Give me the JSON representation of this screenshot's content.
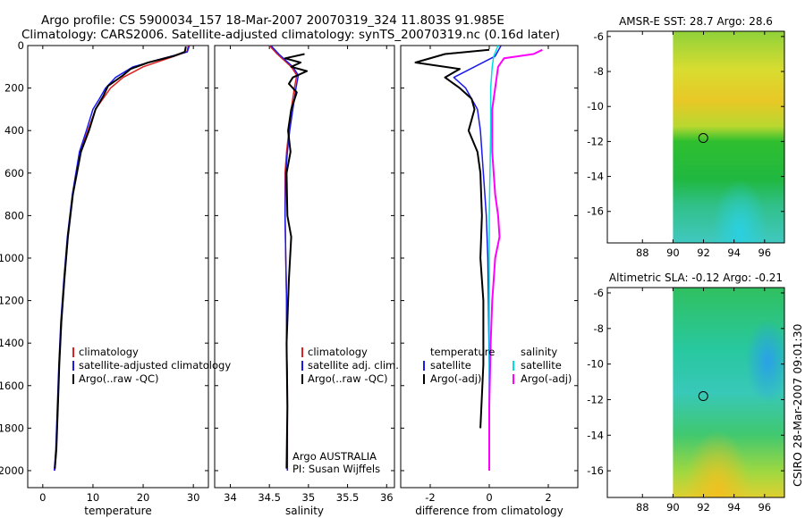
{
  "header": {
    "line1": "Argo profile: CS 5900034_157 18-Mar-2007 20070319_324 11.803S 91.985E",
    "line2": "Climatology: CARS2006. Satellite-adjusted climatology: synTS_20070319.nc (0.16d later)"
  },
  "side_text": "CSIRO 28-Mar-2007 09:01:30",
  "colors": {
    "climatology": "#e02020",
    "satellite": "#1a1aee",
    "argo": "#000000",
    "sat_diff": "#00e0e0",
    "argo_sal_diff": "#ff00ff"
  },
  "chart_data": [
    {
      "id": "temperature",
      "type": "line",
      "xlabel": "temperature",
      "ylabel": "",
      "xlim": [
        -3,
        33
      ],
      "ylim": [
        2080,
        0
      ],
      "xticks": [
        0,
        10,
        20,
        30
      ],
      "yticks": [
        0,
        200,
        400,
        600,
        800,
        1000,
        1200,
        1400,
        1600,
        1800,
        2000
      ],
      "legend": [
        "climatology",
        "satellite-adjusted climatology",
        "Argo(..raw -QC)"
      ],
      "series": [
        {
          "name": "climatology",
          "color": "#e02020",
          "width": 1.5,
          "x": [
            29,
            28.7,
            25,
            20,
            16,
            13.5,
            12,
            10.5,
            9,
            7.5,
            6,
            5,
            4.3,
            3.7,
            3.3,
            3,
            2.7,
            2.4
          ],
          "y": [
            0,
            30,
            60,
            100,
            150,
            200,
            250,
            300,
            400,
            500,
            700,
            900,
            1100,
            1300,
            1500,
            1700,
            1900,
            2000
          ]
        },
        {
          "name": "satellite-adjusted climatology",
          "color": "#1a1aee",
          "width": 1.5,
          "x": [
            29.2,
            28.8,
            24,
            18,
            14.5,
            12.5,
            11.3,
            10,
            8.7,
            7.3,
            5.9,
            4.9,
            4.2,
            3.6,
            3.2,
            2.9,
            2.6,
            2.3
          ],
          "y": [
            0,
            30,
            60,
            100,
            150,
            200,
            250,
            300,
            400,
            500,
            700,
            900,
            1100,
            1300,
            1500,
            1700,
            1900,
            2000
          ]
        },
        {
          "name": "Argo(..raw -QC)",
          "color": "#000000",
          "width": 2,
          "x": [
            28.5,
            28.3,
            26,
            21,
            17.5,
            16,
            13,
            12,
            10.5,
            9.2,
            7.6,
            6,
            5,
            4.3,
            3.7,
            3.3,
            3,
            2.7,
            2.4
          ],
          "y": [
            5,
            30,
            50,
            80,
            110,
            140,
            190,
            240,
            300,
            400,
            500,
            700,
            900,
            1100,
            1300,
            1500,
            1700,
            1900,
            1990
          ]
        }
      ]
    },
    {
      "id": "salinity",
      "type": "line",
      "xlabel": "salinity",
      "ylabel": "",
      "xlim": [
        33.8,
        36.1
      ],
      "ylim": [
        2080,
        0
      ],
      "xticks": [
        34,
        34.5,
        35,
        35.5,
        36
      ],
      "yticks": [],
      "legend": [
        "climatology",
        "satellite adj. clim.",
        "Argo(..raw -QC)"
      ],
      "annotations": [
        "Argo AUSTRALIA",
        "PI: Susan Wijffels"
      ],
      "series": [
        {
          "name": "climatology",
          "color": "#e02020",
          "width": 1.5,
          "x": [
            34.5,
            34.6,
            34.78,
            34.85,
            34.82,
            34.78,
            34.75,
            34.72,
            34.7,
            34.7,
            34.71,
            34.72,
            34.72,
            34.73,
            34.73,
            34.73
          ],
          "y": [
            0,
            40,
            100,
            140,
            200,
            300,
            400,
            500,
            600,
            800,
            1000,
            1200,
            1400,
            1600,
            1800,
            2000
          ]
        },
        {
          "name": "satellite adj. clim.",
          "color": "#1a1aee",
          "width": 1.5,
          "x": [
            34.52,
            34.62,
            34.8,
            34.87,
            34.84,
            34.8,
            34.76,
            34.73,
            34.71,
            34.7,
            34.71,
            34.72,
            34.72,
            34.73,
            34.73,
            34.73
          ],
          "y": [
            0,
            40,
            100,
            140,
            200,
            300,
            400,
            500,
            600,
            800,
            1000,
            1200,
            1400,
            1600,
            1800,
            2000
          ]
        },
        {
          "name": "Argo(..raw -QC)",
          "color": "#000000",
          "width": 2,
          "x": [
            34.95,
            34.7,
            34.9,
            34.78,
            34.98,
            34.8,
            34.75,
            34.85,
            34.78,
            34.74,
            34.77,
            34.72,
            34.73,
            34.78,
            34.75,
            34.72,
            34.73,
            34.72
          ],
          "y": [
            40,
            60,
            80,
            100,
            120,
            150,
            180,
            220,
            300,
            400,
            500,
            600,
            800,
            900,
            1100,
            1400,
            1700,
            1990
          ]
        }
      ]
    },
    {
      "id": "difference",
      "type": "line",
      "xlabel": "difference from climatology",
      "ylabel": "",
      "xlim": [
        -3,
        3
      ],
      "ylim": [
        2080,
        0
      ],
      "xticks": [
        -2,
        0,
        2
      ],
      "yticks": [],
      "legend_left": [
        "temperature",
        "satellite",
        "Argo(-adj)"
      ],
      "legend_right": [
        "salinity",
        "satellite",
        "Argo(-adj)"
      ],
      "series": [
        {
          "name": "temperature satellite",
          "color": "#1a1aee",
          "width": 1.5,
          "x": [
            0.4,
            0.2,
            -0.5,
            -1.2,
            -0.8,
            -0.6,
            -0.4,
            -0.3,
            -0.2,
            -0.1,
            -0.05,
            0,
            0
          ],
          "y": [
            0,
            50,
            100,
            150,
            200,
            250,
            300,
            400,
            600,
            800,
            1000,
            1500,
            2000
          ]
        },
        {
          "name": "temperature Argo(-adj)",
          "color": "#000000",
          "width": 2,
          "x": [
            0,
            -1.5,
            -2.5,
            -1,
            -1.5,
            -1,
            -0.6,
            -0.5,
            -0.7,
            -0.4,
            -0.3,
            -0.25,
            -0.3,
            -0.2,
            -0.2,
            -0.3
          ],
          "y": [
            20,
            40,
            80,
            110,
            150,
            200,
            250,
            300,
            400,
            500,
            600,
            800,
            1000,
            1200,
            1500,
            1800
          ]
        },
        {
          "name": "salinity satellite",
          "color": "#00e0e0",
          "width": 1.5,
          "x": [
            0.3,
            0.15,
            0.1,
            0.05,
            0.05,
            0,
            0,
            0
          ],
          "y": [
            0,
            50,
            100,
            200,
            400,
            800,
            1400,
            2000
          ]
        },
        {
          "name": "salinity Argo(-adj)",
          "color": "#ff00ff",
          "width": 2,
          "x": [
            1.8,
            1.5,
            0.5,
            0.3,
            0.2,
            0.1,
            0.1,
            0.2,
            0.3,
            0.35,
            0.2,
            0.15,
            0.1,
            0.05,
            0,
            0
          ],
          "y": [
            20,
            40,
            60,
            100,
            200,
            300,
            500,
            700,
            800,
            900,
            1000,
            1100,
            1200,
            1400,
            1700,
            2000
          ]
        }
      ]
    },
    {
      "id": "sst-map",
      "type": "heatmap",
      "title": "AMSR-E SST: 28.7 Argo: 28.6",
      "xlim": [
        85.7,
        97.3
      ],
      "ylim": [
        -17.8,
        -5.7
      ],
      "xticks": [
        88,
        90,
        92,
        94,
        96
      ],
      "yticks": [
        -6,
        -8,
        -10,
        -12,
        -14,
        -16
      ],
      "data_x_start": 90,
      "marker": {
        "lon": 91.985,
        "lat": -11.803
      }
    },
    {
      "id": "sla-map",
      "type": "heatmap",
      "title": "Altimetric SLA: -0.12 Argo: -0.21",
      "xlim": [
        85.7,
        97.3
      ],
      "ylim": [
        -17.5,
        -5.7
      ],
      "xticks": [
        88,
        90,
        92,
        94,
        96
      ],
      "yticks": [
        -6,
        -8,
        -10,
        -12,
        -14,
        -16
      ],
      "data_x_start": 90,
      "marker": {
        "lon": 91.985,
        "lat": -11.803
      }
    }
  ]
}
